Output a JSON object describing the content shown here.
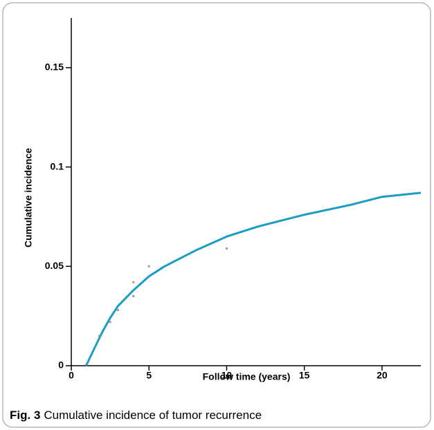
{
  "chart_data": {
    "type": "line",
    "xlabel": "Follow time (years)",
    "ylabel": "Cumulative incidence",
    "xlim": [
      0,
      22.5
    ],
    "ylim": [
      0,
      0.175
    ],
    "xticks": [
      0,
      5,
      10,
      15,
      20
    ],
    "yticks": [
      0,
      0.05,
      0.1,
      0.15
    ],
    "series": [
      {
        "mode": "line",
        "color": "#1b9cc2",
        "x": [
          0.95,
          1.2,
          1.5,
          2,
          2.5,
          3,
          4,
          5,
          6,
          8,
          10,
          12,
          15,
          18,
          20,
          22.5
        ],
        "values": [
          0,
          0.004,
          0.009,
          0.017,
          0.024,
          0.03,
          0.038,
          0.045,
          0.05,
          0.058,
          0.065,
          0.07,
          0.076,
          0.081,
          0.085,
          0.087
        ]
      },
      {
        "mode": "markers",
        "color": "#999999",
        "x": [
          1.8,
          2.5,
          3,
          4,
          4,
          5,
          10
        ],
        "values": [
          0.015,
          0.022,
          0.028,
          0.042,
          0.035,
          0.05,
          0.059
        ]
      }
    ]
  },
  "figure": {
    "label": "Fig. 3",
    "caption": "Cumulative incidence of tumor recurrence"
  }
}
